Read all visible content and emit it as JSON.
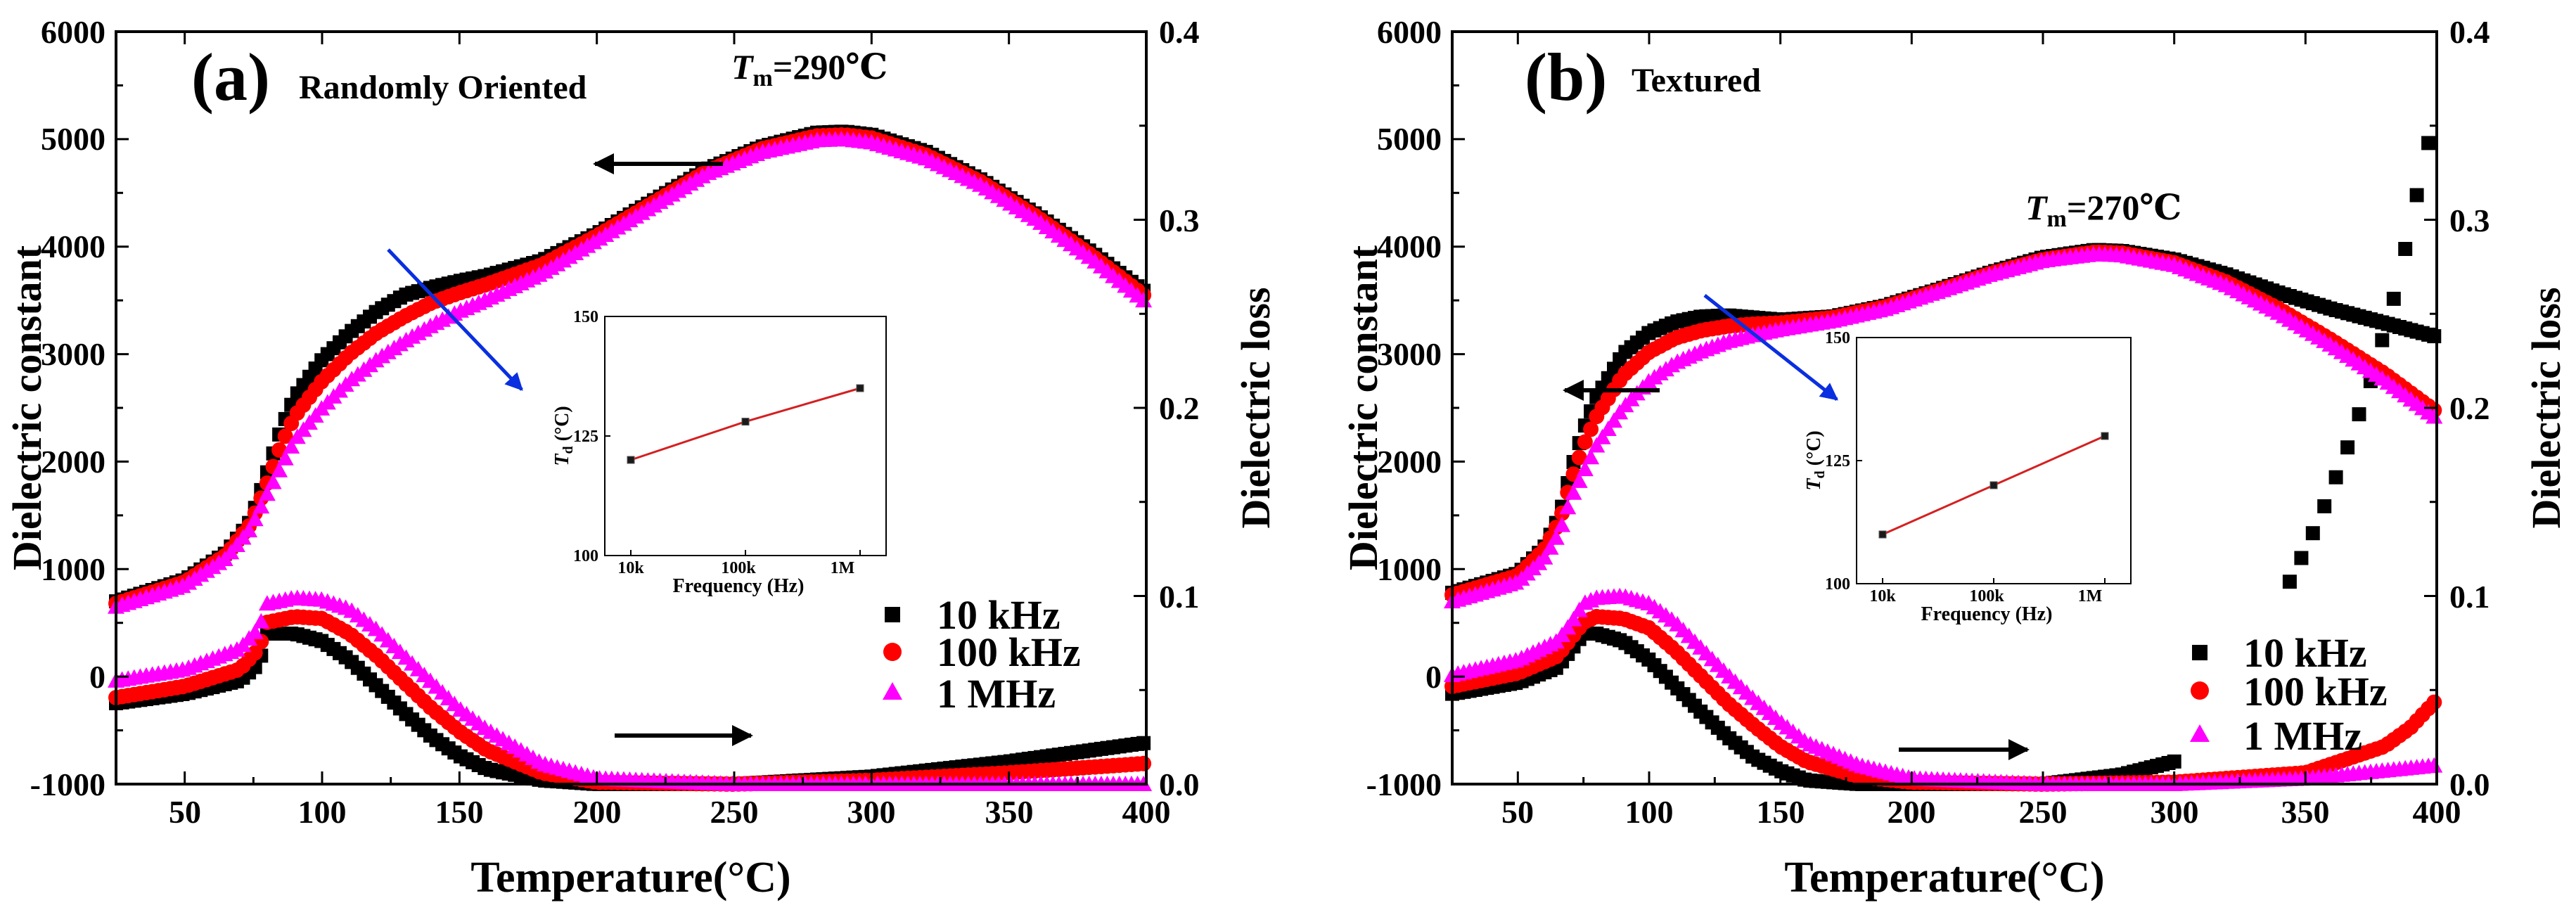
{
  "figure": {
    "panels": [
      {
        "letter": "(a)",
        "title": "Randomly Oriented",
        "tm_symbol": "T",
        "tm_sub": "m",
        "tm_value": "=290℃"
      },
      {
        "letter": "(b)",
        "title": "Textured",
        "tm_symbol": "T",
        "tm_sub": "m",
        "tm_value": "=270℃"
      }
    ],
    "y_left_label": "Dielectric constant",
    "y_right_label": "Dielectric loss",
    "x_label": "Temperature(°C)",
    "x_ticks": [
      "50",
      "100",
      "150",
      "200",
      "250",
      "300",
      "350",
      "400"
    ],
    "y_left_ticks": [
      "-1000",
      "0",
      "1000",
      "2000",
      "3000",
      "4000",
      "5000",
      "6000"
    ],
    "y_right_ticks": [
      "0.0",
      "0.1",
      "0.2",
      "0.3",
      "0.4"
    ],
    "inset": {
      "y_label_symbol": "T",
      "y_label_sub": "d",
      "y_label_unit": " (°C)",
      "x_label": "Frequency (Hz)",
      "x_ticks": [
        "10k",
        "100k",
        "1M"
      ],
      "y_ticks": [
        "100",
        "125",
        "150"
      ]
    },
    "legend": [
      "10 kHz",
      "100 kHz",
      "1 MHz"
    ],
    "colors": {
      "s10k": "#000000",
      "s100k": "#ff0000",
      "s1M": "#ff00ff",
      "arrow_blue": "#0a2fe0",
      "arrow_black": "#000000",
      "inset_line": "#d42020"
    }
  },
  "chart_data": [
    {
      "type": "scatter",
      "panel": "(a)",
      "title": "Randomly Oriented",
      "xlabel": "Temperature(°C)",
      "ylabel": "Dielectric constant",
      "y2label": "Dielectric loss",
      "xlim": [
        25,
        400
      ],
      "ylim": [
        -1000,
        6000
      ],
      "y2lim": [
        0.0,
        0.4
      ],
      "annotations": [
        "Tm=290℃"
      ],
      "series": [
        {
          "name": "10 kHz",
          "axis": "left",
          "x": [
            25,
            50,
            65,
            74,
            80,
            85,
            90,
            100,
            110,
            120,
            130,
            140,
            150,
            160,
            180,
            200,
            220,
            240,
            260,
            280,
            290,
            300,
            320,
            340,
            360,
            380,
            400
          ],
          "y": [
            700,
            900,
            1150,
            1450,
            1900,
            2300,
            2600,
            2950,
            3200,
            3400,
            3550,
            3620,
            3680,
            3730,
            3870,
            4120,
            4420,
            4720,
            4930,
            5060,
            5070,
            5040,
            4880,
            4620,
            4300,
            3950,
            3570
          ]
        },
        {
          "name": "100 kHz",
          "axis": "left",
          "x": [
            25,
            50,
            65,
            74,
            80,
            85,
            90,
            100,
            110,
            120,
            130,
            140,
            150,
            160,
            180,
            200,
            220,
            240,
            260,
            280,
            290,
            300,
            320,
            340,
            360,
            380,
            400
          ],
          "y": [
            680,
            880,
            1130,
            1420,
            1800,
            2150,
            2420,
            2750,
            3000,
            3200,
            3350,
            3480,
            3570,
            3650,
            3830,
            4100,
            4400,
            4700,
            4910,
            5030,
            5040,
            5010,
            4850,
            4600,
            4280,
            3920,
            3530
          ]
        },
        {
          "name": "1 MHz",
          "axis": "left",
          "x": [
            25,
            50,
            65,
            74,
            80,
            85,
            90,
            100,
            110,
            120,
            130,
            140,
            150,
            160,
            180,
            200,
            220,
            240,
            260,
            280,
            290,
            300,
            320,
            340,
            360,
            380,
            400
          ],
          "y": [
            650,
            850,
            1100,
            1380,
            1700,
            1950,
            2200,
            2500,
            2750,
            2950,
            3120,
            3270,
            3400,
            3510,
            3750,
            4060,
            4370,
            4680,
            4880,
            4990,
            5000,
            4970,
            4820,
            4570,
            4250,
            3890,
            3480
          ]
        },
        {
          "name": "10 kHz",
          "axis": "right",
          "x": [
            25,
            50,
            70,
            77,
            80,
            90,
            100,
            110,
            120,
            130,
            140,
            150,
            160,
            180,
            200,
            250,
            300,
            350,
            400
          ],
          "y": [
            0.043,
            0.048,
            0.055,
            0.064,
            0.08,
            0.08,
            0.076,
            0.066,
            0.052,
            0.038,
            0.025,
            0.015,
            0.008,
            0.002,
            0.0,
            0.0,
            0.004,
            0.012,
            0.022
          ]
        },
        {
          "name": "100 kHz",
          "axis": "right",
          "x": [
            25,
            50,
            70,
            77,
            80,
            90,
            100,
            110,
            120,
            130,
            140,
            150,
            160,
            180,
            200,
            250,
            300,
            350,
            400
          ],
          "y": [
            0.046,
            0.052,
            0.061,
            0.072,
            0.086,
            0.089,
            0.088,
            0.08,
            0.068,
            0.054,
            0.04,
            0.028,
            0.018,
            0.006,
            0.001,
            0.0,
            0.002,
            0.006,
            0.011
          ]
        },
        {
          "name": "1 MHz",
          "axis": "right",
          "x": [
            25,
            50,
            70,
            77,
            80,
            90,
            100,
            110,
            120,
            130,
            140,
            150,
            160,
            180,
            200,
            250,
            300,
            350,
            400
          ],
          "y": [
            0.055,
            0.061,
            0.072,
            0.083,
            0.096,
            0.099,
            0.098,
            0.093,
            0.082,
            0.068,
            0.054,
            0.04,
            0.029,
            0.011,
            0.003,
            0.0,
            0.0,
            0.0,
            0.0
          ]
        }
      ],
      "inset": {
        "type": "line",
        "x": [
          "10k",
          "100k",
          "1M"
        ],
        "y": [
          120,
          128,
          135
        ],
        "xlabel": "Frequency (Hz)",
        "ylabel": "Td (°C)",
        "ylim": [
          100,
          150
        ]
      }
    },
    {
      "type": "scatter",
      "panel": "(b)",
      "title": "Textured",
      "xlabel": "Temperature(°C)",
      "ylabel": "Dielectric constant",
      "y2label": "Dielectric loss",
      "xlim": [
        25,
        400
      ],
      "ylim": [
        -1000,
        6000
      ],
      "y2lim": [
        0.0,
        0.4
      ],
      "annotations": [
        "Tm=270℃"
      ],
      "series": [
        {
          "name": "10 kHz",
          "axis": "left",
          "x": [
            25,
            50,
            60,
            66,
            70,
            75,
            80,
            90,
            100,
            110,
            120,
            130,
            140,
            150,
            170,
            190,
            210,
            230,
            250,
            270,
            280,
            300,
            320,
            340,
            360,
            380,
            400
          ],
          "y": [
            780,
            960,
            1200,
            1500,
            1900,
            2300,
            2600,
            3000,
            3200,
            3300,
            3350,
            3360,
            3340,
            3320,
            3350,
            3450,
            3600,
            3760,
            3900,
            3970,
            3960,
            3880,
            3740,
            3570,
            3420,
            3290,
            3160
          ]
        },
        {
          "name": "100 kHz",
          "axis": "left",
          "x": [
            25,
            50,
            60,
            66,
            70,
            75,
            80,
            90,
            100,
            110,
            120,
            130,
            140,
            150,
            170,
            190,
            210,
            230,
            250,
            270,
            280,
            300,
            320,
            340,
            360,
            380,
            400
          ],
          "y": [
            760,
            940,
            1180,
            1450,
            1800,
            2150,
            2420,
            2800,
            3020,
            3150,
            3220,
            3260,
            3280,
            3290,
            3340,
            3440,
            3590,
            3750,
            3880,
            3950,
            3940,
            3850,
            3670,
            3420,
            3130,
            2820,
            2460
          ]
        },
        {
          "name": "1 MHz",
          "axis": "left",
          "x": [
            25,
            50,
            60,
            66,
            70,
            75,
            80,
            90,
            100,
            110,
            120,
            130,
            140,
            150,
            170,
            190,
            210,
            230,
            250,
            270,
            280,
            300,
            320,
            340,
            360,
            380,
            400
          ],
          "y": [
            700,
            880,
            1100,
            1350,
            1650,
            1900,
            2150,
            2500,
            2750,
            2920,
            3030,
            3120,
            3180,
            3230,
            3310,
            3420,
            3580,
            3740,
            3870,
            3930,
            3920,
            3830,
            3640,
            3380,
            3080,
            2760,
            2400
          ]
        },
        {
          "name": "10 kHz",
          "axis": "right",
          "x": [
            25,
            50,
            65,
            70,
            75,
            80,
            90,
            100,
            110,
            120,
            130,
            140,
            150,
            160,
            180,
            200,
            250,
            280,
            300,
            340,
            345,
            355,
            365,
            375,
            385,
            395,
            400
          ],
          "y": [
            0.048,
            0.054,
            0.062,
            0.071,
            0.08,
            0.08,
            0.076,
            0.066,
            0.052,
            0.038,
            0.025,
            0.014,
            0.007,
            0.002,
            0.0,
            0.0,
            0.0,
            0.005,
            0.012,
            0.098,
            0.11,
            0.14,
            0.175,
            0.215,
            0.265,
            0.33,
            0.36
          ]
        },
        {
          "name": "100 kHz",
          "axis": "right",
          "x": [
            25,
            50,
            65,
            70,
            75,
            80,
            90,
            100,
            110,
            120,
            130,
            140,
            150,
            160,
            180,
            200,
            250,
            300,
            350,
            380,
            390,
            400
          ],
          "y": [
            0.052,
            0.059,
            0.068,
            0.077,
            0.086,
            0.089,
            0.088,
            0.083,
            0.071,
            0.057,
            0.043,
            0.031,
            0.02,
            0.012,
            0.004,
            0.001,
            0.0,
            0.001,
            0.006,
            0.02,
            0.03,
            0.045
          ]
        },
        {
          "name": "1 MHz",
          "axis": "right",
          "x": [
            25,
            50,
            65,
            70,
            75,
            80,
            90,
            100,
            110,
            120,
            130,
            140,
            150,
            160,
            180,
            200,
            250,
            300,
            350,
            400
          ],
          "y": [
            0.058,
            0.066,
            0.076,
            0.085,
            0.096,
            0.099,
            0.1,
            0.096,
            0.086,
            0.072,
            0.058,
            0.045,
            0.033,
            0.022,
            0.01,
            0.003,
            0.0,
            0.0,
            0.003,
            0.01
          ]
        }
      ],
      "inset": {
        "type": "line",
        "x": [
          "10k",
          "100k",
          "1M"
        ],
        "y": [
          110,
          120,
          130
        ],
        "xlabel": "Frequency (Hz)",
        "ylabel": "Td (°C)",
        "ylim": [
          100,
          150
        ]
      }
    }
  ]
}
